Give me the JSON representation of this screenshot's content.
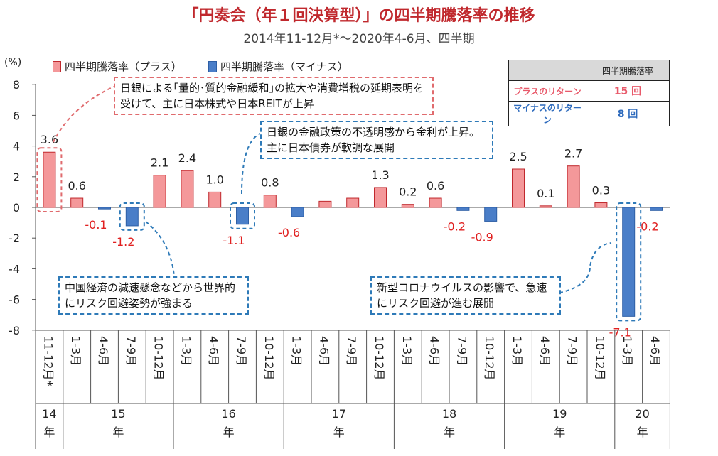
{
  "title": "「円奏会（年１回決算型）」の四半期騰落率の推移",
  "subtitle": "2014年11-12月*～2020年4-6月、四半期",
  "unit_label": "(%)",
  "legend": {
    "positive": "四半期騰落率（プラス）",
    "negative": "四半期騰落率（マイナス）"
  },
  "return_table": {
    "header": "四半期騰落率",
    "rows": [
      {
        "label": "プラスのリターン",
        "value": "15 回"
      },
      {
        "label": "マイナスのリターン",
        "value": "8 回"
      }
    ]
  },
  "annotations": {
    "note_boj_easing": "日銀による｢量的･質的金融緩和｣の拡大や消費増税の延期表明を受けて、主に日本株式や日本REITが上昇",
    "note_boj_uncertainty": "日銀の金融政策の不透明感から金利が上昇。主に日本債券が軟調な展開",
    "note_china": "中国経済の減速懸念などから世界的にリスク回避姿勢が強まる",
    "note_corona": "新型コロナウイルスの影響で、急速にリスク回避が進む展開"
  },
  "colors": {
    "positive_bar": "#f4989a",
    "negative_bar": "#4a7ec8",
    "negative_label": "#e02020",
    "title": "#c0282d"
  },
  "chart_data": {
    "type": "bar",
    "categories": [
      "11-12月*",
      "1-3月",
      "4-6月",
      "7-9月",
      "10-12月",
      "1-3月",
      "4-6月",
      "7-9月",
      "10-12月",
      "1-3月",
      "4-6月",
      "7-9月",
      "10-12月",
      "1-3月",
      "4-6月",
      "7-9月",
      "10-12月",
      "1-3月",
      "4-6月",
      "7-9月",
      "10-12月",
      "1-3月",
      "4-6月"
    ],
    "values": [
      3.6,
      0.6,
      -0.1,
      -1.2,
      2.1,
      2.4,
      1.0,
      -1.1,
      0.8,
      -0.6,
      0.4,
      0.6,
      1.3,
      0.2,
      0.6,
      -0.2,
      -0.9,
      2.5,
      0.1,
      2.7,
      0.3,
      -7.1,
      -0.2
    ],
    "value_labels": [
      "3.6",
      "0.6",
      "-0.1",
      "-1.2",
      "2.1",
      "2.4",
      "1.0",
      "-1.1",
      "0.8",
      "-0.6",
      "",
      "",
      "1.3",
      "0.2",
      "0.6",
      "-0.2",
      "-0.9",
      "2.5",
      "0.1",
      "2.7",
      "0.3",
      "-7.1",
      "-0.2"
    ],
    "years": [
      {
        "label": "14年",
        "start": 0,
        "count": 1
      },
      {
        "label": "15年",
        "start": 1,
        "count": 4
      },
      {
        "label": "16年",
        "start": 5,
        "count": 4
      },
      {
        "label": "17年",
        "start": 9,
        "count": 4
      },
      {
        "label": "18年",
        "start": 13,
        "count": 4
      },
      {
        "label": "19年",
        "start": 17,
        "count": 4
      },
      {
        "label": "20年",
        "start": 21,
        "count": 2
      }
    ],
    "ylim": [
      -8,
      8
    ],
    "yticks": [
      8,
      6,
      4,
      2,
      0,
      -2,
      -4,
      -6,
      -8
    ],
    "highlighted_quarters": [
      0,
      3,
      7,
      21
    ],
    "grid": false
  }
}
